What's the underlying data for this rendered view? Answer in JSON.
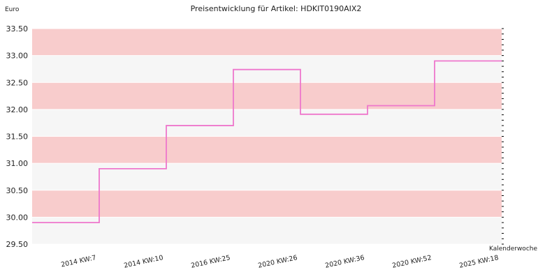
{
  "chart_data": {
    "type": "line",
    "title": "Preisentwicklung für Artikel: HDKIT0190AIX2",
    "ylabel": "Euro",
    "xlabel": "Kalenderwoche",
    "ylim": [
      29.5,
      33.5
    ],
    "y_ticks": [
      "29.50",
      "30.00",
      "30.50",
      "31.00",
      "31.50",
      "32.00",
      "32.50",
      "33.00",
      "33.50"
    ],
    "step": true,
    "categories": [
      "2014 KW:7",
      "2014 KW:10",
      "2016 KW:25",
      "2020 KW:26",
      "2020 KW:36",
      "2020 KW:52",
      "2025 KW:18"
    ],
    "series": [
      {
        "values": [
          29.9,
          30.9,
          31.7,
          32.74,
          31.91,
          32.07,
          32.9
        ]
      }
    ],
    "colors": {
      "line": "#ee77cc",
      "band_dark": "#f8cccc",
      "band_light": "#f6f6f6",
      "grid": "#ffffff",
      "axis": "#000000"
    },
    "grid": true,
    "legend": "none"
  }
}
